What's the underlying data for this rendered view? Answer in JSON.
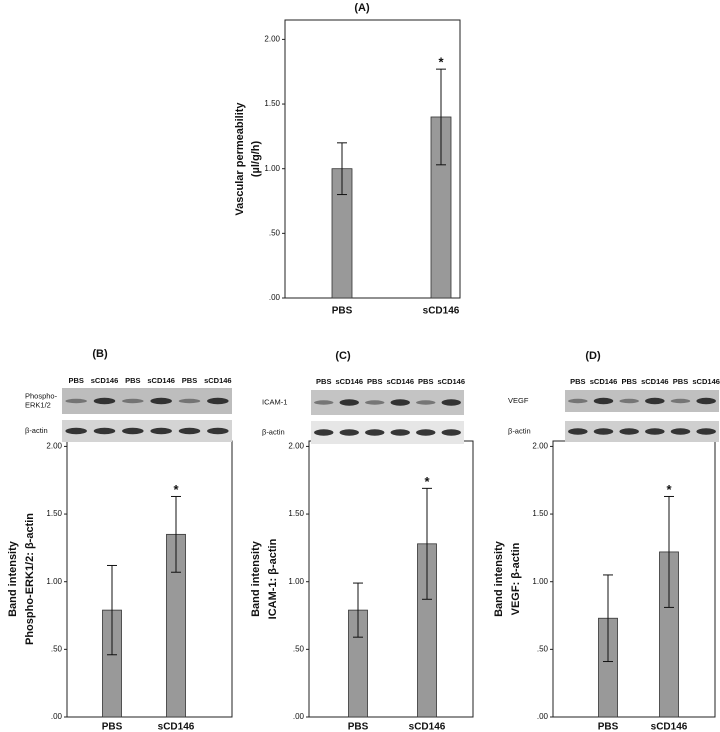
{
  "chart_data": [
    {
      "type": "bar",
      "title": "(A)",
      "y_label": [
        "Vascular permeability",
        "(µl/g/h)"
      ],
      "categories": [
        "PBS",
        "sCD146"
      ],
      "values": [
        1.0,
        1.4
      ],
      "errors": [
        0.2,
        0.37
      ],
      "color": "#999999",
      "annotations": [
        {
          "text": "*",
          "x": "sCD146"
        }
      ],
      "ylim": [
        0,
        2.15
      ],
      "yticks": [
        {
          "value": 0,
          "label": ".00"
        },
        {
          "value": 0.5,
          "label": ".50"
        },
        {
          "value": 1,
          "label": "1.00"
        },
        {
          "value": 1.5,
          "label": "1.50"
        },
        {
          "value": 2,
          "label": "2.00"
        }
      ]
    },
    {
      "type": "bar",
      "title": "(B)",
      "y_label": [
        "Band intensity",
        "Phospho-ERK1/2: β-actin"
      ],
      "blot": {
        "lanes": [
          "PBS",
          "sCD146",
          "PBS",
          "sCD146",
          "PBS",
          "sCD146"
        ],
        "rows": [
          [
            "Phospho-",
            "ERK1/2"
          ],
          [
            "β-actin"
          ]
        ]
      },
      "categories": [
        "PBS",
        "sCD146"
      ],
      "values": [
        0.79,
        1.35
      ],
      "errors": [
        0.33,
        0.28
      ],
      "color": "#999999",
      "annotations": [
        {
          "text": "*",
          "x": "sCD146"
        }
      ],
      "ylim": [
        0,
        2.04
      ],
      "yticks": [
        {
          "value": 0,
          "label": ".00"
        },
        {
          "value": 0.5,
          "label": ".50"
        },
        {
          "value": 1,
          "label": "1.00"
        },
        {
          "value": 1.5,
          "label": "1.50"
        },
        {
          "value": 2,
          "label": "2.00"
        }
      ]
    },
    {
      "type": "bar",
      "title": "(C)",
      "y_label": [
        "Band intensity",
        "ICAM-1: β-actin"
      ],
      "blot": {
        "lanes": [
          "PBS",
          "sCD146",
          "PBS",
          "sCD146",
          "PBS",
          "sCD146"
        ],
        "rows": [
          [
            "ICAM-1"
          ],
          [
            "β-actin"
          ]
        ]
      },
      "categories": [
        "PBS",
        "sCD146"
      ],
      "values": [
        0.79,
        1.28
      ],
      "errors": [
        0.2,
        0.41
      ],
      "color": "#999999",
      "annotations": [
        {
          "text": "*",
          "x": "sCD146"
        }
      ],
      "ylim": [
        0,
        2.04
      ],
      "yticks": [
        {
          "value": 0,
          "label": ".00"
        },
        {
          "value": 0.5,
          "label": ".50"
        },
        {
          "value": 1,
          "label": "1.00"
        },
        {
          "value": 1.5,
          "label": "1.50"
        },
        {
          "value": 2,
          "label": "2.00"
        }
      ]
    },
    {
      "type": "bar",
      "title": "(D)",
      "y_label": [
        "Band intensity",
        "VEGF: β-actin"
      ],
      "blot": {
        "lanes": [
          "PBS",
          "sCD146",
          "PBS",
          "sCD146",
          "PBS",
          "sCD146"
        ],
        "rows": [
          [
            "VEGF"
          ],
          [
            "β-actin"
          ]
        ]
      },
      "categories": [
        "PBS",
        "sCD146"
      ],
      "values": [
        0.73,
        1.22
      ],
      "errors": [
        0.32,
        0.41
      ],
      "color": "#999999",
      "annotations": [
        {
          "text": "*",
          "x": "sCD146"
        }
      ],
      "ylim": [
        0,
        2.04
      ],
      "yticks": [
        {
          "value": 0,
          "label": ".00"
        },
        {
          "value": 0.5,
          "label": ".50"
        },
        {
          "value": 1,
          "label": "1.00"
        },
        {
          "value": 1.5,
          "label": "1.50"
        },
        {
          "value": 2,
          "label": "2.00"
        }
      ]
    }
  ]
}
